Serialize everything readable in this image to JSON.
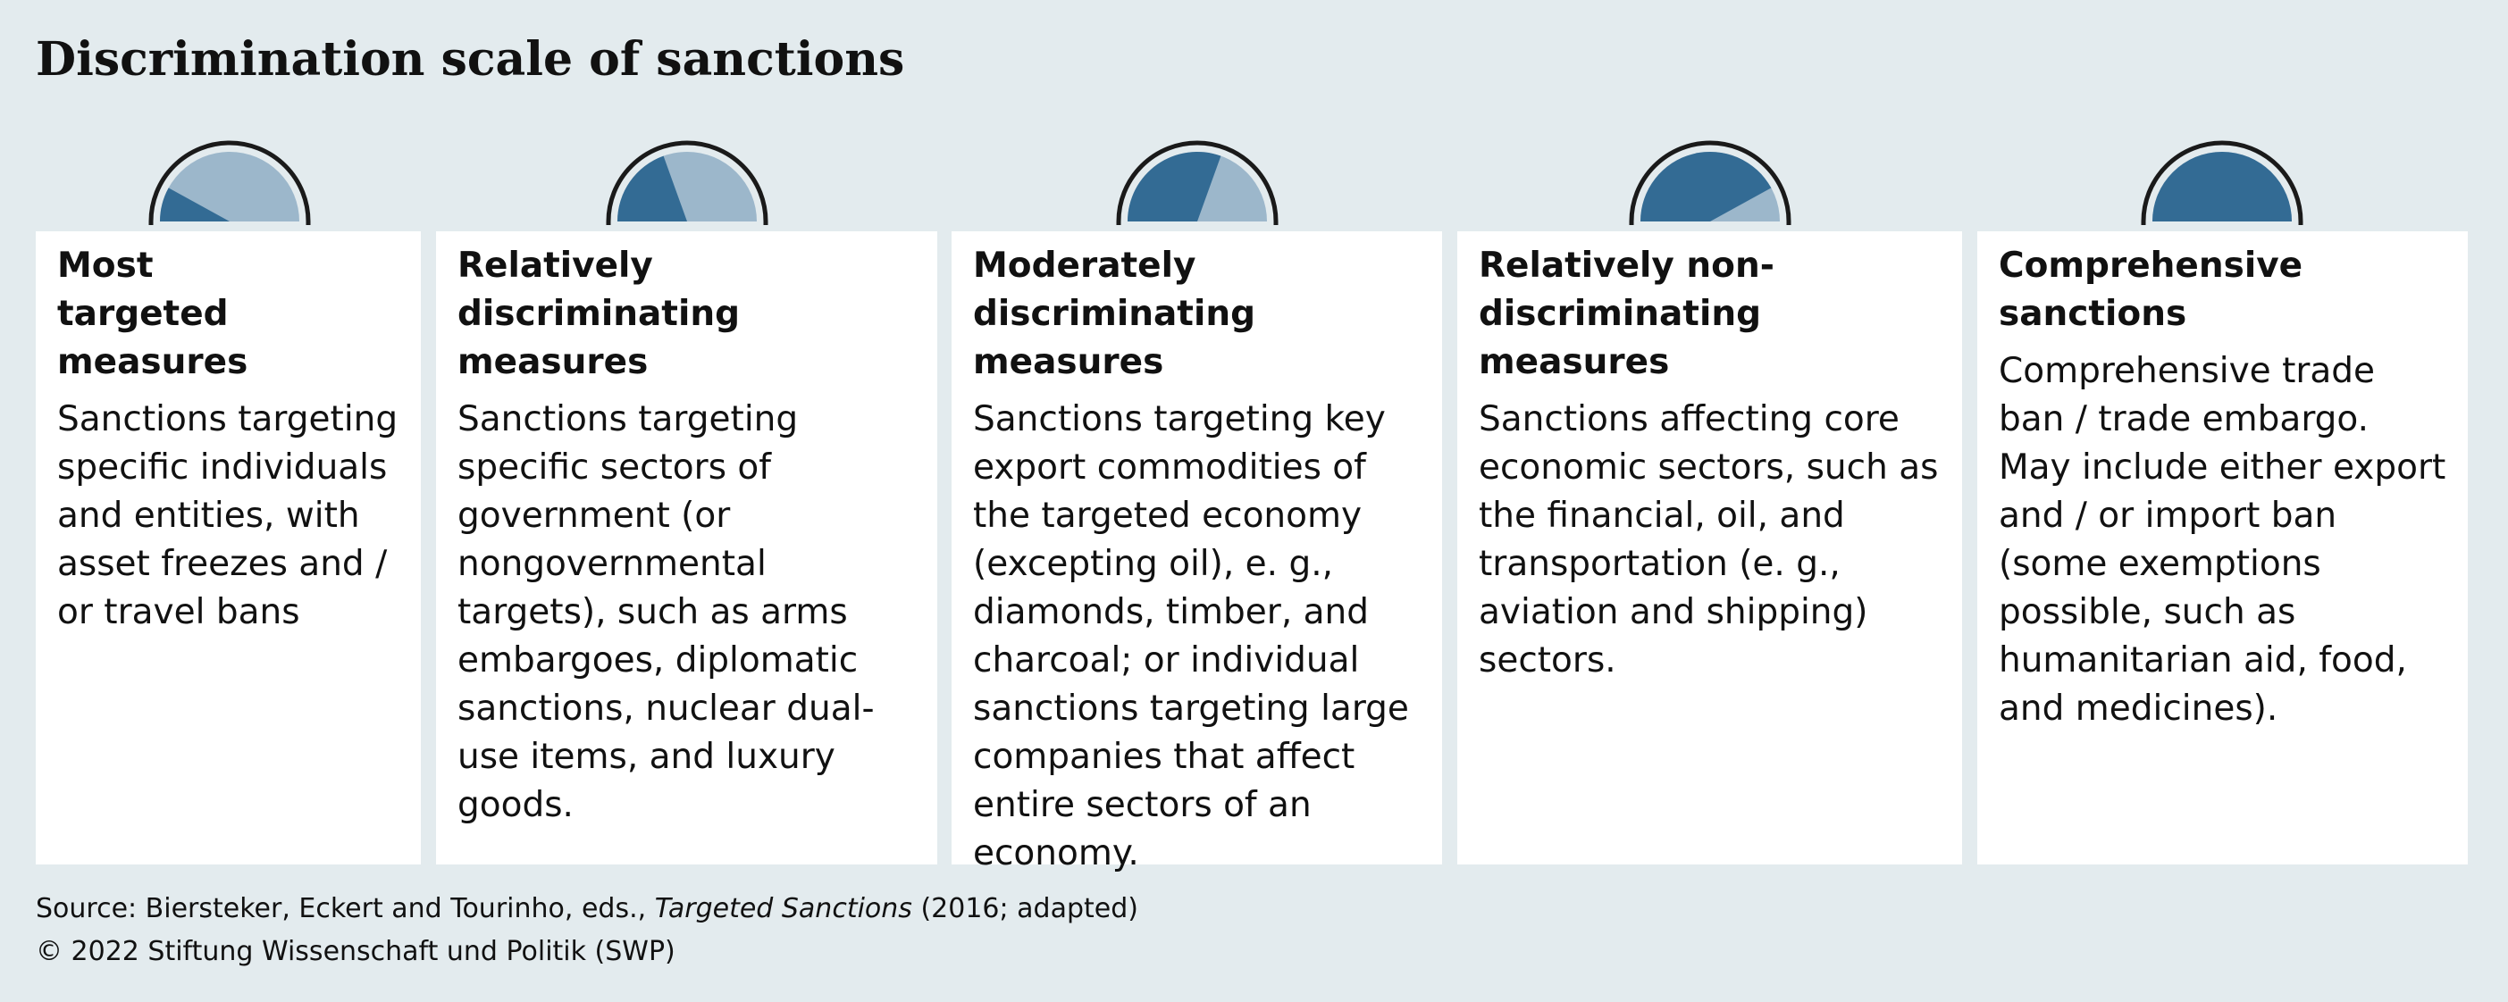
{
  "title": "Discrimination scale of sanctions",
  "colors": {
    "background": "#e3ebee",
    "card": "#ffffff",
    "gauge_filled": "#336b94",
    "gauge_light": "#9cb7cb",
    "gauge_outline": "#1a1a1a"
  },
  "categories": [
    {
      "title": "Most targeted measures",
      "description": "Sanctions targeting specific individuals and entities, with asset freezes and / or travel bans",
      "gauge_share": 0.16
    },
    {
      "title": "Relatively discriminating measures",
      "description": "Sanctions targeting specific sectors of government (or nongovernmental targets), such as arms embargoes, diplomatic sanctions, nuclear dual-use items, and luxury goods.",
      "gauge_share": 0.39
    },
    {
      "title": "Moderately discriminating measures",
      "description": "Sanctions targeting key export commodities of the targeted economy (excepting oil), e. g., diamonds, timber, and charcoal; or individual sanctions targeting large companies that affect entire sectors of an economy.",
      "gauge_share": 0.61
    },
    {
      "title": "Relatively non-discriminating measures",
      "description": "Sanctions affecting core economic sectors, such as the financial, oil, and transportation (e. g., aviation and shipping) sectors.",
      "gauge_share": 0.84
    },
    {
      "title": "Comprehensive sanctions",
      "description": "Comprehensive trade ban / trade embargo. May include either export and / or import ban (some exemptions possible, such as humanitarian aid, food, and medicines).",
      "gauge_share": 1.0
    }
  ],
  "footer": {
    "source_prefix": "Source: Biersteker, Eckert and Tourinho, eds., ",
    "source_title": "Targeted Sanctions",
    "source_suffix": " (2016; adapted)",
    "copyright": "© 2022 Stiftung Wissenschaft und Politik (SWP)"
  }
}
